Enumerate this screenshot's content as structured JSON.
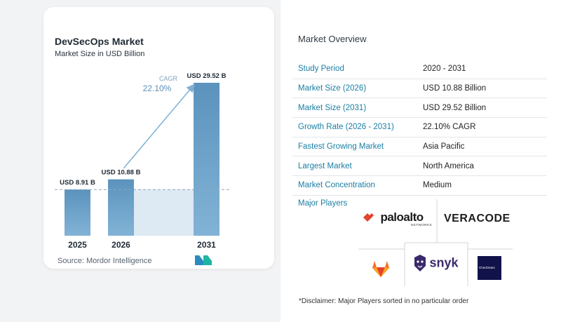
{
  "title": "DevSecOps Market",
  "subtitle": "Market Size in USD Billion",
  "source_label": "Source:",
  "source_name": "Mordor Intelligence",
  "cagr_label": "CAGR",
  "cagr_value": "22.10%",
  "chart_data": {
    "type": "bar",
    "categories": [
      "2025",
      "2026",
      "2031"
    ],
    "values": [
      8.91,
      10.88,
      29.52
    ],
    "data_labels": [
      "USD 8.91 B",
      "USD 10.88 B",
      "USD 29.52 B"
    ],
    "ylim": [
      0,
      29.52
    ],
    "grid": false,
    "colors": {
      "bar": "#5b93bd",
      "bar_light": "#82b3d6",
      "shade": "#dde9f3",
      "arrow": "#7fb0d4",
      "dash": "#8fa6b8"
    }
  },
  "overview": {
    "title": "Market Overview",
    "rows": [
      {
        "key": "Study Period",
        "value": "2020 - 2031"
      },
      {
        "key": "Market Size (2026)",
        "value": "USD 10.88 Billion"
      },
      {
        "key": "Market Size (2031)",
        "value": "USD 29.52 Billion"
      },
      {
        "key": "Growth Rate (2026 - 2031)",
        "value": "22.10% CAGR"
      },
      {
        "key": "Fastest Growing Market",
        "value": "Asia Pacific"
      },
      {
        "key": "Largest Market",
        "value": "North America"
      },
      {
        "key": "Market Concentration",
        "value": "Medium"
      }
    ]
  },
  "major_players": {
    "title": "Major Players",
    "logos": {
      "paloalto": "paloalto",
      "paloalto_sub": "NETWORKS",
      "veracode": "VERACODE",
      "snyk": "snyk",
      "checkmarx": "Checkmarx"
    }
  },
  "disclaimer": "*Disclaimer: Major Players sorted in no particular order"
}
